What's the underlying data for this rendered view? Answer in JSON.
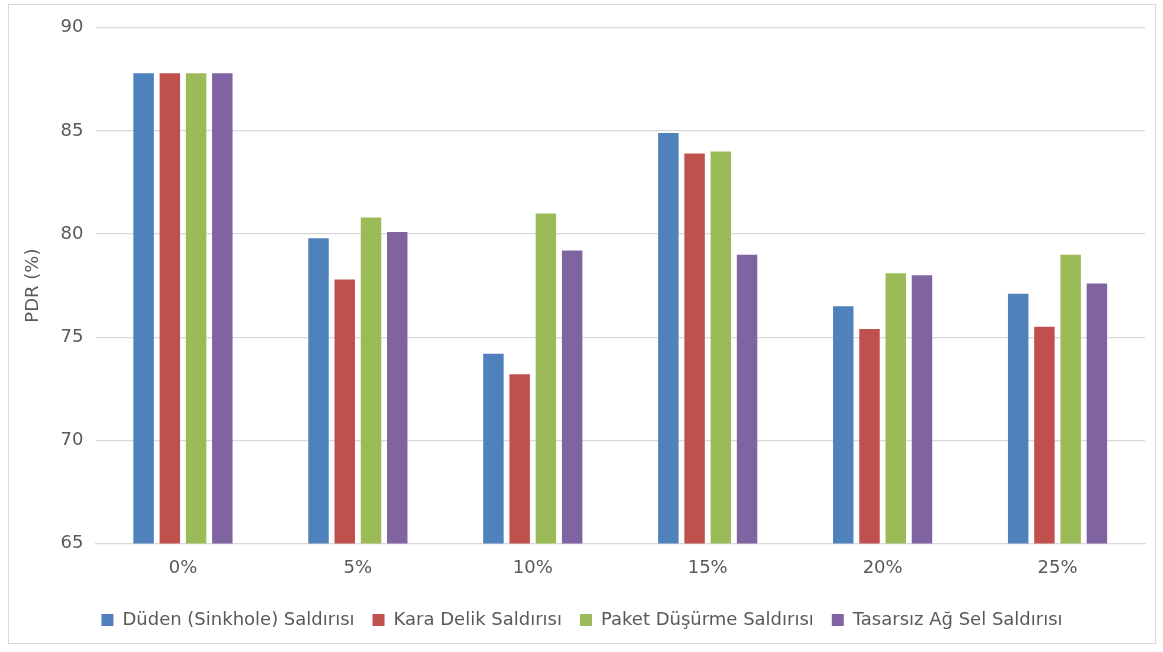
{
  "chart_data": {
    "type": "bar",
    "ylabel": "PDR (%)",
    "categories": [
      "0%",
      "5%",
      "10%",
      "15%",
      "20%",
      "25%"
    ],
    "series": [
      {
        "name": "Düden (Sinkhole) Saldırısı",
        "color": "#4f81bd",
        "values": [
          87.8,
          79.8,
          74.2,
          84.9,
          76.5,
          77.1
        ]
      },
      {
        "name": "Kara Delik Saldırısı",
        "color": "#c0504d",
        "values": [
          87.8,
          77.8,
          73.2,
          83.9,
          75.4,
          75.5
        ]
      },
      {
        "name": "Paket Düşürme Saldırısı",
        "color": "#9bbb59",
        "values": [
          87.8,
          80.8,
          81.0,
          84.0,
          78.1,
          79.0
        ]
      },
      {
        "name": "Tasarsız Ağ Sel Saldırısı",
        "color": "#8064a2",
        "values": [
          87.8,
          80.1,
          79.2,
          79.0,
          78.0,
          77.6
        ]
      }
    ],
    "ylim": [
      65,
      90
    ],
    "yticks": [
      65,
      70,
      75,
      80,
      85,
      90
    ],
    "grid": "y",
    "legend": "bottom"
  }
}
